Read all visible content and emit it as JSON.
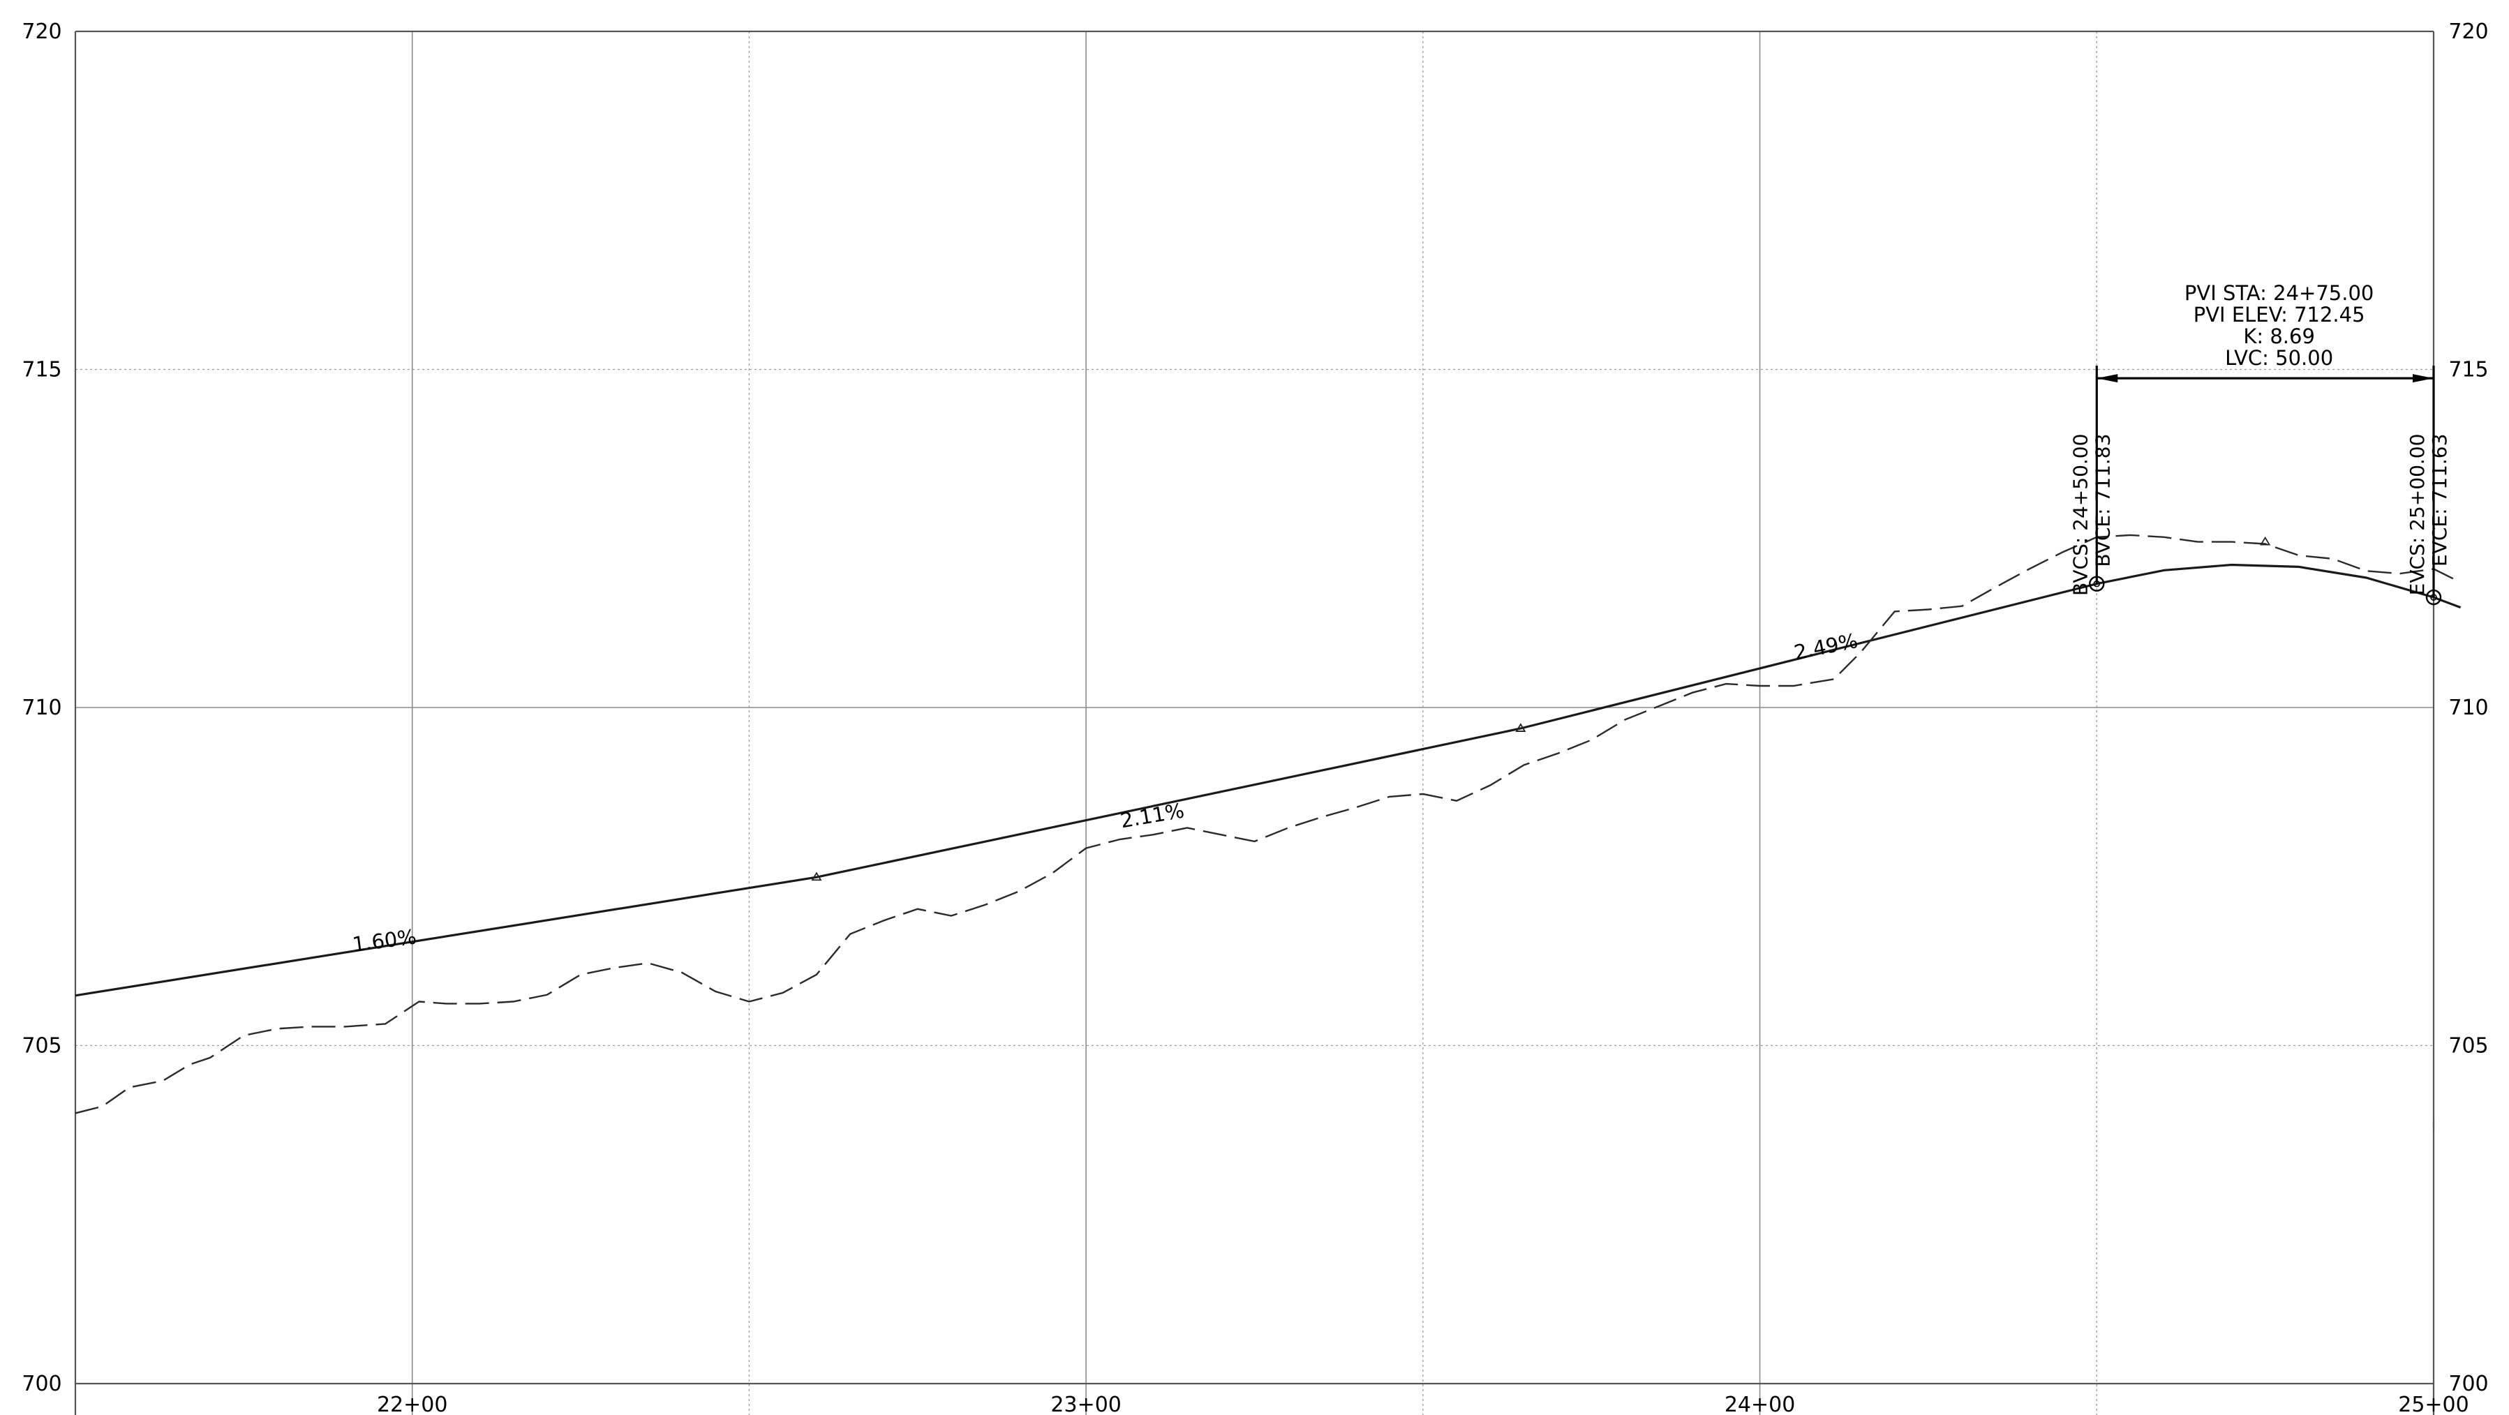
{
  "chart_data": {
    "type": "line",
    "title": "",
    "xlabel": "",
    "ylabel": "",
    "xlim": [
      2150,
      2500
    ],
    "ylim": [
      700,
      720
    ],
    "x_ticks": [
      {
        "sta": 2200,
        "label": "22+00"
      },
      {
        "sta": 2300,
        "label": "23+00"
      },
      {
        "sta": 2400,
        "label": "24+00"
      },
      {
        "sta": 2500,
        "label": "25+00"
      }
    ],
    "y_ticks": [
      {
        "elev": 700,
        "label": "700"
      },
      {
        "elev": 705,
        "label": "705"
      },
      {
        "elev": 710,
        "label": "710"
      },
      {
        "elev": 715,
        "label": "715"
      },
      {
        "elev": 720,
        "label": "720"
      }
    ],
    "grid_minor_x": [
      2250,
      2350,
      2450
    ],
    "grid": true,
    "series": [
      {
        "style": "solid",
        "x": [
          2150,
          2260,
          2364.5,
          2450,
          2460,
          2470,
          2480,
          2490,
          2500,
          2504
        ],
        "y": [
          705.74,
          707.49,
          709.69,
          711.83,
          712.03,
          712.11,
          712.08,
          711.92,
          711.63,
          711.48
        ]
      },
      {
        "style": "dashed",
        "x": [
          2150,
          2154,
          2158,
          2163,
          2167,
          2170,
          2175,
          2180,
          2185,
          2190,
          2196,
          2201,
          2205,
          2210,
          2215,
          2220,
          2225,
          2230,
          2235,
          2240,
          2245,
          2250,
          2255,
          2260,
          2265,
          2270,
          2275,
          2280,
          2285,
          2290,
          2295,
          2300,
          2305,
          2310,
          2315,
          2320,
          2325,
          2330,
          2335,
          2340,
          2345,
          2350,
          2355,
          2360,
          2365,
          2370,
          2375,
          2380,
          2385,
          2390,
          2395,
          2400,
          2405,
          2411,
          2415,
          2420,
          2425,
          2430,
          2435,
          2440,
          2445,
          2450,
          2455,
          2460,
          2465,
          2470,
          2475,
          2480,
          2485,
          2490,
          2495,
          2500,
          2504
        ],
        "y": [
          704.0,
          704.1,
          704.38,
          704.48,
          704.72,
          704.82,
          705.15,
          705.25,
          705.28,
          705.28,
          705.32,
          705.65,
          705.62,
          705.62,
          705.65,
          705.75,
          706.05,
          706.15,
          706.22,
          706.08,
          705.8,
          705.65,
          705.78,
          706.05,
          706.65,
          706.85,
          707.02,
          706.92,
          707.08,
          707.28,
          707.55,
          707.92,
          708.05,
          708.12,
          708.22,
          708.12,
          708.02,
          708.22,
          708.38,
          708.52,
          708.68,
          708.72,
          708.62,
          708.85,
          709.15,
          709.32,
          709.52,
          709.82,
          710.02,
          710.22,
          710.35,
          710.32,
          710.32,
          710.42,
          710.82,
          711.42,
          711.45,
          711.5,
          711.78,
          712.05,
          712.3,
          712.52,
          712.55,
          712.52,
          712.45,
          712.45,
          712.42,
          712.25,
          712.2,
          712.02,
          711.98,
          712.05,
          711.85
        ]
      }
    ],
    "grade_labels": [
      {
        "text": "1.60%",
        "sta": 2196,
        "elev": 706.45,
        "rotate": -7.4
      },
      {
        "text": "2.11%",
        "sta": 2310,
        "elev": 708.3,
        "rotate": -9.7
      },
      {
        "text": "2.49%",
        "sta": 2410,
        "elev": 710.8,
        "rotate": -11.4
      }
    ],
    "pvi_markers": [
      {
        "sta": 2260,
        "elev": 707.49
      },
      {
        "sta": 2364.5,
        "elev": 709.69
      },
      {
        "sta": 2475,
        "elev": 712.45
      }
    ],
    "vertical_curve": {
      "pvi_lines": [
        "PVI  STA: 24+75.00",
        "PVI  ELEV: 712.45",
        "K: 8.69",
        "LVC: 50.00"
      ],
      "bvc": {
        "sta": 2450,
        "elev": 711.83,
        "label1": "BVCS:  24+50.00",
        "label2": "BVCE:  711.83"
      },
      "evc": {
        "sta": 2500,
        "elev": 711.63,
        "label1": "EVCS:  25+00.00",
        "label2": "EVCE:  711.63"
      },
      "dimension_elev": 714.87,
      "label_top_elev": 714.05
    }
  }
}
